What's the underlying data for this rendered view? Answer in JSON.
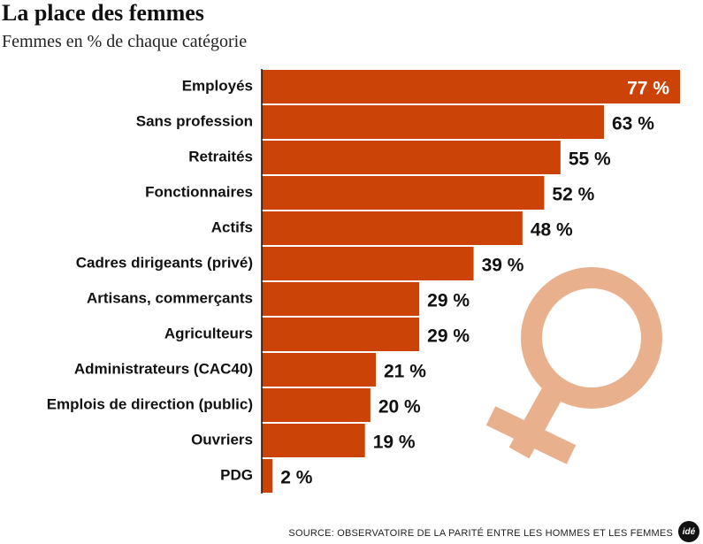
{
  "chart_data": {
    "type": "bar",
    "orientation": "horizontal",
    "title": "La place des femmes",
    "subtitle": "Femmes en % de chaque catégorie",
    "categories": [
      "Employés",
      "Sans profession",
      "Retraités",
      "Fonctionnaires",
      "Actifs",
      "Cadres dirigeants (privé)",
      "Artisans, commerçants",
      "Agriculteurs",
      "Administrateurs (CAC40)",
      "Emplois de direction (public)",
      "Ouvriers",
      "PDG"
    ],
    "values": [
      77,
      63,
      55,
      52,
      48,
      39,
      29,
      29,
      21,
      20,
      19,
      2
    ],
    "value_labels": [
      "77 %",
      "63 %",
      "55 %",
      "52 %",
      "48 %",
      "39 %",
      "29 %",
      "29 %",
      "21 %",
      "20 %",
      "19 %",
      "2 %"
    ],
    "xlim": [
      0,
      77
    ],
    "grid": false,
    "legend": "none",
    "colors": {
      "bar": "#cc4308",
      "symbol": "#e9b08e",
      "label": "#111111",
      "label_inside": "#ffffff"
    }
  },
  "source": "SOURCE: OBSERVATOIRE DE LA PARITÉ ENTRE LES HOMMES ET LES FEMMES",
  "logo_text": "idé",
  "decor_icon": "female-symbol-icon"
}
